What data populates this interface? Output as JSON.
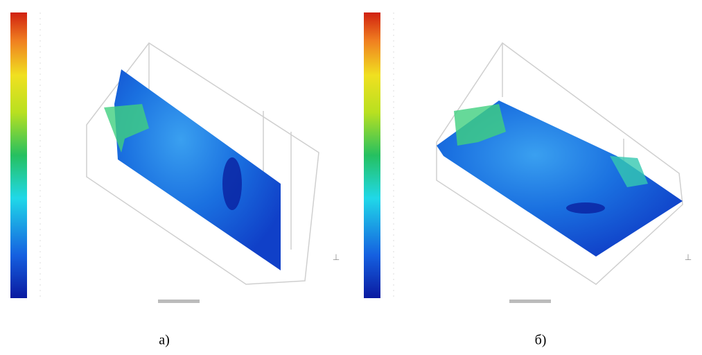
{
  "panels": [
    {
      "caption": "а)"
    },
    {
      "caption": "б)"
    }
  ]
}
